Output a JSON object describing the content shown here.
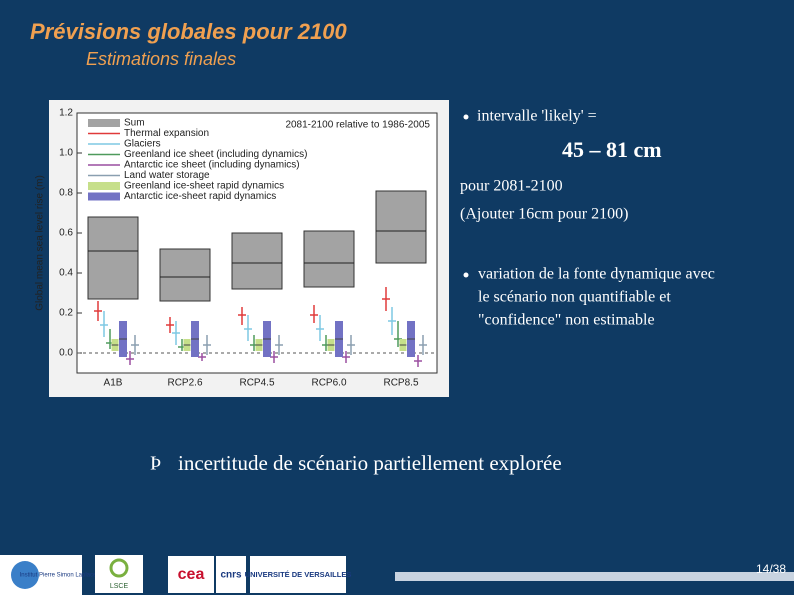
{
  "header": {
    "title": "Prévisions globales pour 2100",
    "subtitle": "Estimations finales"
  },
  "figure": {
    "note": "2081-2100 relative to 1986-2005",
    "y_label": "Global mean sea level rise (m)",
    "ylim": [
      -0.1,
      1.2
    ],
    "yticks": [
      {
        "value": 0,
        "label": "0.0"
      },
      {
        "value": 0.2,
        "label": "0.2"
      },
      {
        "value": 0.4,
        "label": "0.4"
      },
      {
        "value": 0.6,
        "label": "0.6"
      },
      {
        "value": 0.8,
        "label": "0.8"
      },
      {
        "value": 1,
        "label": "1.0"
      },
      {
        "value": 1.2,
        "label": "1.2"
      }
    ],
    "categories": [
      "A1B",
      "RCP2.6",
      "RCP4.5",
      "RCP6.0",
      "RCP8.5"
    ],
    "series": [
      {
        "name": "Sum",
        "color": "#a3a3a3",
        "kind": "box",
        "values": [
          {
            "low": 0.27,
            "mid": 0.51,
            "high": 0.68
          },
          {
            "low": 0.26,
            "mid": 0.38,
            "high": 0.52
          },
          {
            "low": 0.32,
            "mid": 0.45,
            "high": 0.6
          },
          {
            "low": 0.33,
            "mid": 0.45,
            "high": 0.61
          },
          {
            "low": 0.45,
            "mid": 0.61,
            "high": 0.81
          }
        ]
      },
      {
        "name": "Thermal expansion",
        "color": "#e03a3a",
        "kind": "whisker",
        "values": [
          {
            "low": 0.16,
            "mid": 0.21,
            "high": 0.26
          },
          {
            "low": 0.1,
            "mid": 0.14,
            "high": 0.18
          },
          {
            "low": 0.14,
            "mid": 0.19,
            "high": 0.23
          },
          {
            "low": 0.15,
            "mid": 0.19,
            "high": 0.24
          },
          {
            "low": 0.21,
            "mid": 0.27,
            "high": 0.33
          }
        ]
      },
      {
        "name": "Glaciers",
        "color": "#7ec8e3",
        "kind": "whisker",
        "values": [
          {
            "low": 0.08,
            "mid": 0.14,
            "high": 0.21
          },
          {
            "low": 0.04,
            "mid": 0.1,
            "high": 0.16
          },
          {
            "low": 0.06,
            "mid": 0.12,
            "high": 0.19
          },
          {
            "low": 0.06,
            "mid": 0.12,
            "high": 0.19
          },
          {
            "low": 0.09,
            "mid": 0.16,
            "high": 0.23
          }
        ]
      },
      {
        "name": "Greenland ice sheet (including dynamics)",
        "color": "#4f9a5c",
        "kind": "whisker",
        "values": [
          {
            "low": 0.02,
            "mid": 0.05,
            "high": 0.12
          },
          {
            "low": 0.01,
            "mid": 0.03,
            "high": 0.07
          },
          {
            "low": 0.01,
            "mid": 0.04,
            "high": 0.09
          },
          {
            "low": 0.01,
            "mid": 0.04,
            "high": 0.09
          },
          {
            "low": 0.03,
            "mid": 0.07,
            "high": 0.16
          }
        ]
      },
      {
        "name": "Antarctic ice sheet (including dynamics)",
        "color": "#9a4fa0",
        "kind": "whisker",
        "values": [
          {
            "low": -0.06,
            "mid": -0.03,
            "high": 0.01
          },
          {
            "low": -0.04,
            "mid": -0.02,
            "high": 0
          },
          {
            "low": -0.05,
            "mid": -0.02,
            "high": 0.01
          },
          {
            "low": -0.05,
            "mid": -0.02,
            "high": 0.01
          },
          {
            "low": -0.07,
            "mid": -0.04,
            "high": -0.01
          }
        ]
      },
      {
        "name": "Land water storage",
        "color": "#8a9fb0",
        "kind": "whisker",
        "values": [
          {
            "low": -0.01,
            "mid": 0.04,
            "high": 0.09
          },
          {
            "low": -0.01,
            "mid": 0.04,
            "high": 0.09
          },
          {
            "low": -0.01,
            "mid": 0.04,
            "high": 0.09
          },
          {
            "low": -0.01,
            "mid": 0.04,
            "high": 0.09
          },
          {
            "low": -0.01,
            "mid": 0.04,
            "high": 0.09
          }
        ]
      },
      {
        "name": "Greenland ice-sheet rapid dynamics",
        "color": "#c6df8a",
        "kind": "box",
        "values": [
          {
            "low": 0.01,
            "mid": 0.04,
            "high": 0.07
          },
          {
            "low": 0.01,
            "mid": 0.04,
            "high": 0.07
          },
          {
            "low": 0.01,
            "mid": 0.04,
            "high": 0.07
          },
          {
            "low": 0.01,
            "mid": 0.04,
            "high": 0.07
          },
          {
            "low": 0.01,
            "mid": 0.04,
            "high": 0.07
          }
        ]
      },
      {
        "name": "Antarctic ice-sheet rapid dynamics",
        "color": "#7272c4",
        "kind": "box",
        "values": [
          {
            "low": -0.02,
            "mid": 0.07,
            "high": 0.16
          },
          {
            "low": -0.02,
            "mid": 0.07,
            "high": 0.16
          },
          {
            "low": -0.02,
            "mid": 0.07,
            "high": 0.16
          },
          {
            "low": -0.02,
            "mid": 0.07,
            "high": 0.16
          },
          {
            "low": -0.02,
            "mid": 0.07,
            "high": 0.16
          }
        ]
      }
    ]
  },
  "right": {
    "bullet1": "intervalle 'likely' =",
    "range": "45 – 81 cm",
    "period": "pour 2081-2100",
    "addition": "(Ajouter 16cm pour 2100)",
    "bullet2": [
      "variation de la fonte dynamique avec",
      "le scénario non quantifiable et",
      "\"confidence\" non estimable"
    ]
  },
  "conclusion": {
    "symbol": "Þ",
    "text": "incertitude de scénario partiellement explorée"
  },
  "footer": {
    "logos": [
      "Institut Pierre Simon Laplace",
      "LSCE",
      "cea",
      "cnrs",
      "UNIVERSITÉ DE VERSAILLES"
    ],
    "page": "14/38"
  }
}
